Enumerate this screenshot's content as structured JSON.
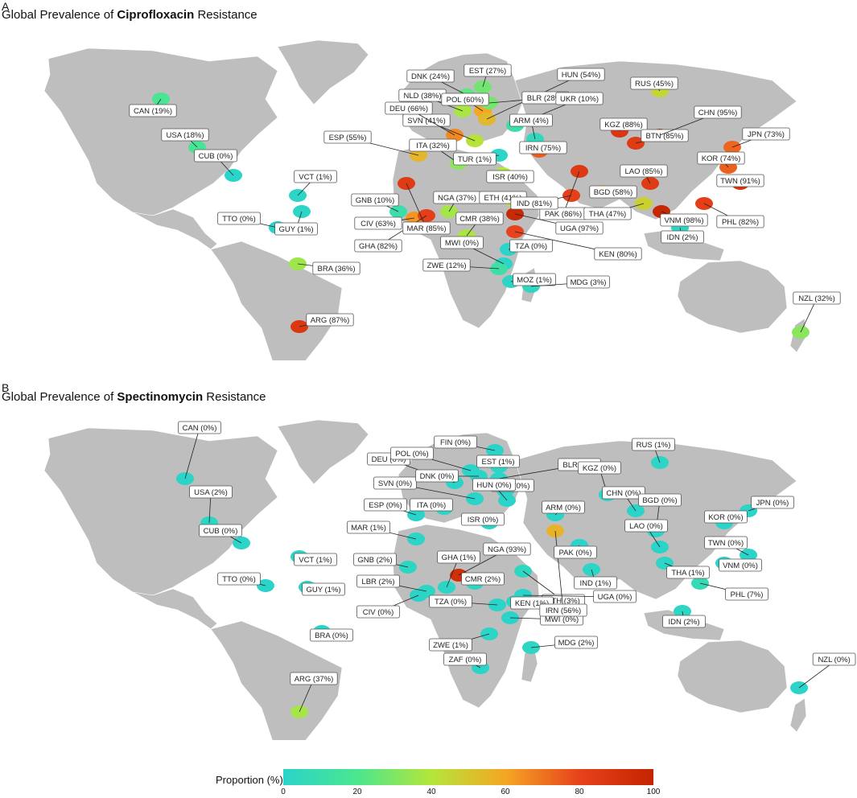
{
  "panels": [
    {
      "letter": "A",
      "title_prefix": "Global Prevalence of ",
      "title_drug": "Ciprofloxacin",
      "title_suffix": " Resistance",
      "base_color": "#bebebe",
      "countries": [
        {
          "label": "CAN (19%)",
          "value": 19
        },
        {
          "label": "USA (18%)",
          "value": 18
        },
        {
          "label": "CUB (0%)",
          "value": 0
        },
        {
          "label": "VCT (1%)",
          "value": 1
        },
        {
          "label": "TTO (0%)",
          "value": 0
        },
        {
          "label": "GUY (1%)",
          "value": 1
        },
        {
          "label": "BRA (36%)",
          "value": 36
        },
        {
          "label": "ARG (87%)",
          "value": 87
        },
        {
          "label": "GNB (10%)",
          "value": 10
        },
        {
          "label": "CIV (63%)",
          "value": 63
        },
        {
          "label": "GHA (82%)",
          "value": 82
        },
        {
          "label": "NGA (37%)",
          "value": 37
        },
        {
          "label": "CMR (38%)",
          "value": 38
        },
        {
          "label": "ETH (41%)",
          "value": 41
        },
        {
          "label": "UGA (97%)",
          "value": 97
        },
        {
          "label": "KEN (80%)",
          "value": 80
        },
        {
          "label": "TZA (0%)",
          "value": 0
        },
        {
          "label": "MWI (0%)",
          "value": 0
        },
        {
          "label": "ZWE (12%)",
          "value": 12
        },
        {
          "label": "MOZ (1%)",
          "value": 1
        },
        {
          "label": "MDG (3%)",
          "value": 3
        },
        {
          "label": "MAR (85%)",
          "value": 85
        },
        {
          "label": "ESP (55%)",
          "value": 55
        },
        {
          "label": "ITA (32%)",
          "value": 32
        },
        {
          "label": "SVN (41%)",
          "value": 41
        },
        {
          "label": "DEU (66%)",
          "value": 66
        },
        {
          "label": "NLD (38%)",
          "value": 38
        },
        {
          "label": "DNK (24%)",
          "value": 24
        },
        {
          "label": "POL (60%)",
          "value": 60
        },
        {
          "label": "EST (27%)",
          "value": 27
        },
        {
          "label": "HUN (54%)",
          "value": 54
        },
        {
          "label": "BLR (28%)",
          "value": 28
        },
        {
          "label": "UKR (10%)",
          "value": 10
        },
        {
          "label": "RUS (45%)",
          "value": 45
        },
        {
          "label": "ARM (4%)",
          "value": 4
        },
        {
          "label": "TUR (1%)",
          "value": 1
        },
        {
          "label": "ISR (40%)",
          "value": 40
        },
        {
          "label": "IRN (75%)",
          "value": 75
        },
        {
          "label": "PAK (86%)",
          "value": 86
        },
        {
          "label": "IND (81%)",
          "value": 81
        },
        {
          "label": "BGD (58%)",
          "value": 58
        },
        {
          "label": "KGZ (88%)",
          "value": 88
        },
        {
          "label": "BTN (85%)",
          "value": 85
        },
        {
          "label": "CHN (95%)",
          "value": 95
        },
        {
          "label": "LAO (85%)",
          "value": 85
        },
        {
          "label": "THA (47%)",
          "value": 47
        },
        {
          "label": "VNM (98%)",
          "value": 98
        },
        {
          "label": "JPN (73%)",
          "value": 73
        },
        {
          "label": "KOR (74%)",
          "value": 74
        },
        {
          "label": "TWN (91%)",
          "value": 91
        },
        {
          "label": "PHL (82%)",
          "value": 82
        },
        {
          "label": "IDN (2%)",
          "value": 2
        },
        {
          "label": "NZL (32%)",
          "value": 32
        }
      ]
    },
    {
      "letter": "B",
      "title_prefix": "Global Prevalence of ",
      "title_drug": "Spectinomycin",
      "title_suffix": " Resistance",
      "base_color": "#bebebe",
      "countries": [
        {
          "label": "CAN (0%)",
          "value": 0
        },
        {
          "label": "USA (2%)",
          "value": 2
        },
        {
          "label": "CUB (0%)",
          "value": 0
        },
        {
          "label": "VCT (1%)",
          "value": 1
        },
        {
          "label": "TTO (0%)",
          "value": 0
        },
        {
          "label": "GUY (1%)",
          "value": 1
        },
        {
          "label": "BRA (0%)",
          "value": 0
        },
        {
          "label": "ARG (37%)",
          "value": 37
        },
        {
          "label": "GNB (2%)",
          "value": 2
        },
        {
          "label": "LBR (2%)",
          "value": 2
        },
        {
          "label": "CIV (0%)",
          "value": 0
        },
        {
          "label": "GHA (1%)",
          "value": 1
        },
        {
          "label": "NGA (93%)",
          "value": 93
        },
        {
          "label": "CMR (2%)",
          "value": 2
        },
        {
          "label": "ETH (3%)",
          "value": 3
        },
        {
          "label": "UGA (0%)",
          "value": 0
        },
        {
          "label": "TZA (0%)",
          "value": 0
        },
        {
          "label": "KEN (1%)",
          "value": 1
        },
        {
          "label": "MWI (0%)",
          "value": 0
        },
        {
          "label": "ZWE (1%)",
          "value": 1
        },
        {
          "label": "MDG (2%)",
          "value": 2
        },
        {
          "label": "ZAF (0%)",
          "value": 0
        },
        {
          "label": "MAR (1%)",
          "value": 1
        },
        {
          "label": "ESP (0%)",
          "value": 0
        },
        {
          "label": "ITA (0%)",
          "value": 0
        },
        {
          "label": "SVN (0%)",
          "value": 0
        },
        {
          "label": "DEU (0%)",
          "value": 0
        },
        {
          "label": "POL (0%)",
          "value": 0
        },
        {
          "label": "DNK (0%)",
          "value": 0
        },
        {
          "label": "FIN (0%)",
          "value": 0
        },
        {
          "label": "EST (1%)",
          "value": 1
        },
        {
          "label": "BLR (0%)",
          "value": 0
        },
        {
          "label": "UKR (0%)",
          "value": 0
        },
        {
          "label": "HUN (0%)",
          "value": 0
        },
        {
          "label": "RUS (1%)",
          "value": 1
        },
        {
          "label": "ISR (0%)",
          "value": 0
        },
        {
          "label": "ARM (0%)",
          "value": 0
        },
        {
          "label": "IRN (56%)",
          "value": 56
        },
        {
          "label": "PAK (0%)",
          "value": 0
        },
        {
          "label": "IND (1%)",
          "value": 1
        },
        {
          "label": "KGZ (0%)",
          "value": 0
        },
        {
          "label": "CHN (0%)",
          "value": 0
        },
        {
          "label": "BGD (0%)",
          "value": 0
        },
        {
          "label": "LAO (0%)",
          "value": 0
        },
        {
          "label": "THA (1%)",
          "value": 1
        },
        {
          "label": "VNM (0%)",
          "value": 0
        },
        {
          "label": "TWN (0%)",
          "value": 0
        },
        {
          "label": "JPN (0%)",
          "value": 0
        },
        {
          "label": "KOR (0%)",
          "value": 0
        },
        {
          "label": "PHL (7%)",
          "value": 7
        },
        {
          "label": "IDN (2%)",
          "value": 2
        },
        {
          "label": "NZL (0%)",
          "value": 0
        }
      ]
    }
  ],
  "legend": {
    "title": "Proportion (%)",
    "ticks": [
      "0",
      "20",
      "40",
      "60",
      "80",
      "100"
    ],
    "range": [
      0,
      100
    ],
    "colors": [
      "#2ad4c9",
      "#4be68f",
      "#b4e63a",
      "#f5a623",
      "#e8421c",
      "#c42400"
    ]
  }
}
